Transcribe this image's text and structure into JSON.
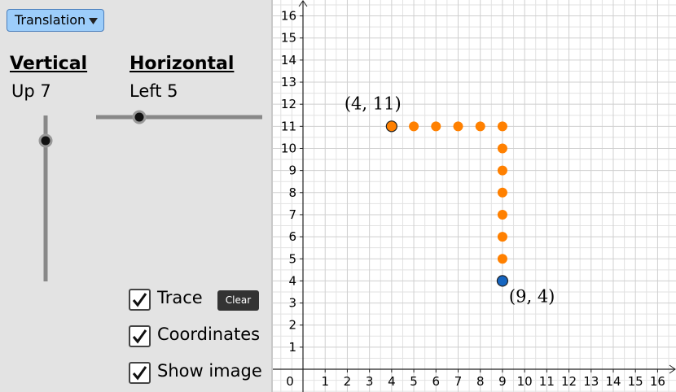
{
  "controls": {
    "dropdown": "Translation",
    "vertical": {
      "label": "Vertical",
      "value_text": "Up 7"
    },
    "horizontal": {
      "label": "Horizontal",
      "value_text": "Left 5"
    },
    "checkboxes": [
      {
        "label": "Trace",
        "checked": true
      },
      {
        "label": "Coordinates",
        "checked": true
      },
      {
        "label": "Show image",
        "checked": true
      }
    ],
    "clear_button": "Clear"
  },
  "chart_data": {
    "type": "scatter",
    "xlim": [
      -1.36,
      16.83
    ],
    "ylim": [
      -1.03,
      16.72
    ],
    "xticks": [
      0,
      1,
      2,
      3,
      4,
      5,
      6,
      7,
      8,
      9,
      10,
      11,
      12,
      13,
      14,
      15,
      16
    ],
    "yticks": [
      1,
      2,
      3,
      4,
      5,
      6,
      7,
      8,
      9,
      10,
      11,
      12,
      13,
      14,
      15,
      16
    ],
    "grid": true,
    "series": [
      {
        "color": "#ff8000",
        "x": [
          5,
          6,
          7,
          8,
          9,
          9,
          9,
          9,
          9,
          9,
          9
        ],
        "y": [
          11,
          11,
          11,
          11,
          11,
          10,
          9,
          8,
          7,
          6,
          5
        ]
      }
    ],
    "points": [
      {
        "x": 4,
        "y": 11,
        "label": "(4, 11)",
        "color": "#ff8000"
      },
      {
        "x": 9,
        "y": 4,
        "label": "(9, 4)",
        "color": "#1565c0"
      }
    ]
  }
}
